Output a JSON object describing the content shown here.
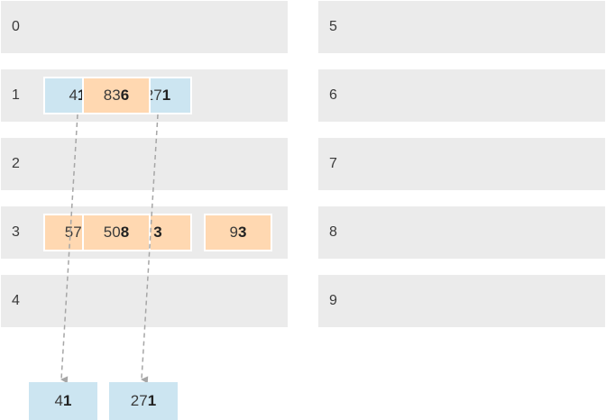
{
  "buckets": [
    {
      "label": "0",
      "items": []
    },
    {
      "label": "1",
      "items": [
        {
          "prefix": "4",
          "digit": "1",
          "color": "blue"
        },
        {
          "prefix": "27",
          "digit": "1",
          "color": "blue"
        }
      ]
    },
    {
      "label": "2",
      "items": []
    },
    {
      "label": "3",
      "items": [
        {
          "prefix": "57",
          "digit": "3",
          "color": "orange"
        },
        {
          "prefix": "",
          "digit": "3",
          "color": "orange"
        },
        {
          "prefix": "9",
          "digit": "3",
          "color": "orange"
        }
      ]
    },
    {
      "label": "4",
      "items": []
    },
    {
      "label": "5",
      "items": []
    },
    {
      "label": "6",
      "items": [
        {
          "prefix": "83",
          "digit": "6",
          "color": "orange"
        }
      ]
    },
    {
      "label": "7",
      "items": []
    },
    {
      "label": "8",
      "items": [
        {
          "prefix": "50",
          "digit": "8",
          "color": "orange"
        }
      ]
    },
    {
      "label": "9",
      "items": []
    }
  ],
  "output": [
    {
      "prefix": "4",
      "digit": "1"
    },
    {
      "prefix": "27",
      "digit": "1"
    }
  ],
  "colors": {
    "bucket_bg": "#ebebeb",
    "blue": "#cce5f1",
    "orange": "#ffd8b1",
    "arrow": "#a6a6a6"
  }
}
